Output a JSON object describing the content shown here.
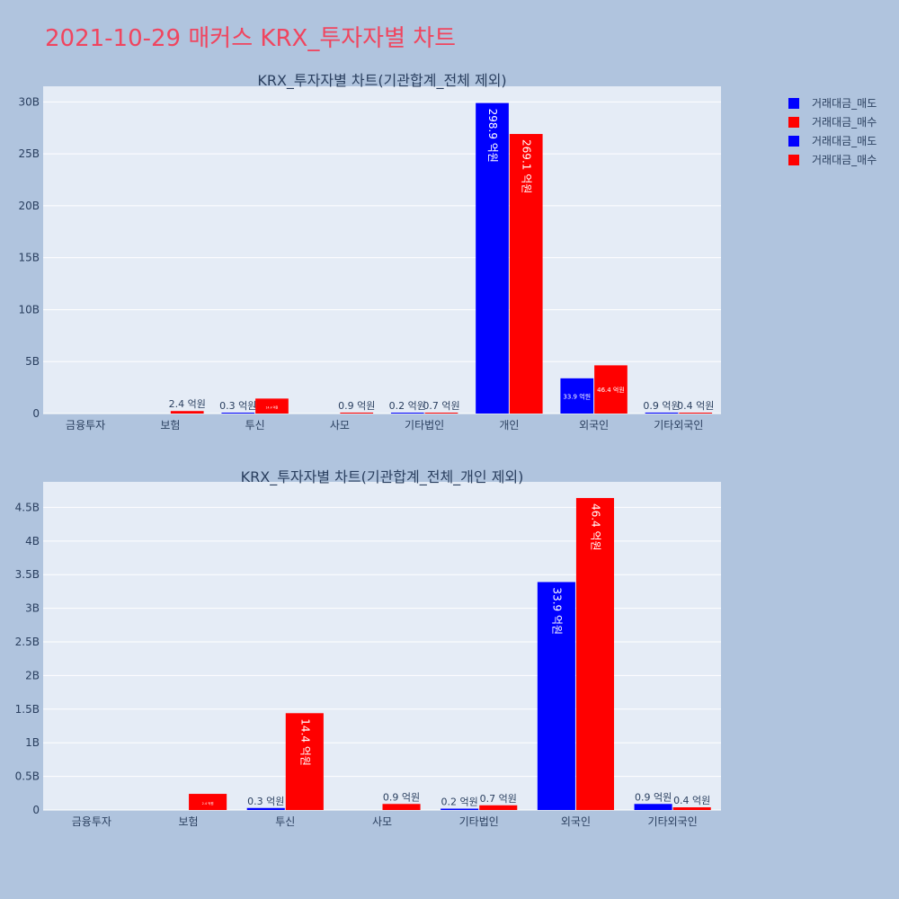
{
  "page": {
    "title": "2021-10-29 매커스 KRX_투자자별 차트"
  },
  "legend": [
    {
      "label": "거래대금_매도",
      "color": "#0000FF"
    },
    {
      "label": "거래대금_매수",
      "color": "#FF0000"
    },
    {
      "label": "거래대금_매도",
      "color": "#0000FF"
    },
    {
      "label": "거래대금_매수",
      "color": "#FF0000"
    }
  ],
  "chart_data": [
    {
      "type": "bar",
      "title": "KRX_투자자별 차트(기관합계_전체 제외)",
      "categories": [
        "금융투자",
        "보험",
        "투신",
        "사모",
        "기타법인",
        "개인",
        "외국인",
        "기타외국인"
      ],
      "series": [
        {
          "name": "거래대금_매도",
          "color": "#0000FF",
          "values": [
            0,
            0,
            0.03,
            0,
            0.02,
            29.89,
            3.39,
            0.09
          ],
          "labels": [
            "",
            "",
            "0.3 억원",
            "",
            "0.2 억원",
            "298.9 억원",
            "33.9 억원",
            "0.9 억원"
          ]
        },
        {
          "name": "거래대금_매수",
          "color": "#FF0000",
          "values": [
            0,
            0.24,
            1.44,
            0.09,
            0.07,
            26.91,
            4.64,
            0.04
          ],
          "labels": [
            "",
            "2.4 억원",
            "14.4 억원",
            "0.9 억원",
            "0.7 억원",
            "269.1 억원",
            "46.4 억원",
            "0.4 억원"
          ]
        }
      ],
      "yticks": [
        0,
        5,
        10,
        15,
        20,
        25,
        30
      ],
      "ytick_labels": [
        "0",
        "5B",
        "10B",
        "15B",
        "20B",
        "25B",
        "30B"
      ],
      "ylim": [
        0,
        31.5
      ],
      "grid": true,
      "plot_bg": "#E5ECF6"
    },
    {
      "type": "bar",
      "title": "KRX_투자자별 차트(기관합계_전체_개인 제외)",
      "categories": [
        "금융투자",
        "보험",
        "투신",
        "사모",
        "기타법인",
        "외국인",
        "기타외국인"
      ],
      "series": [
        {
          "name": "거래대금_매도",
          "color": "#0000FF",
          "values": [
            0,
            0,
            0.03,
            0,
            0.02,
            3.39,
            0.09
          ],
          "labels": [
            "",
            "",
            "0.3 억원",
            "",
            "0.2 억원",
            "33.9 억원",
            "0.9 억원"
          ]
        },
        {
          "name": "거래대금_매수",
          "color": "#FF0000",
          "values": [
            0,
            0.24,
            1.44,
            0.09,
            0.07,
            4.64,
            0.04
          ],
          "labels": [
            "",
            "2.4 억원",
            "14.4 억원",
            "0.9 억원",
            "0.7 억원",
            "46.4 억원",
            "0.4 억원"
          ]
        }
      ],
      "yticks": [
        0,
        0.5,
        1,
        1.5,
        2,
        2.5,
        3,
        3.5,
        4,
        4.5
      ],
      "ytick_labels": [
        "0",
        "0.5B",
        "1B",
        "1.5B",
        "2B",
        "2.5B",
        "3B",
        "3.5B",
        "4B",
        "4.5B"
      ],
      "ylim": [
        0,
        4.88
      ],
      "grid": true,
      "plot_bg": "#E5ECF6"
    }
  ]
}
